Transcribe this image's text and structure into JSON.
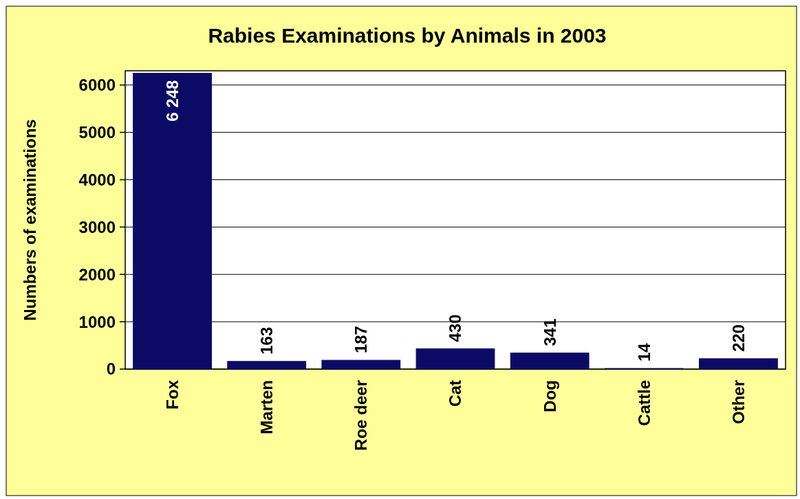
{
  "chart_data": {
    "type": "bar",
    "title": "Rabies Examinations by Animals in 2003",
    "ylabel": "Numbers of examinations",
    "categories": [
      "Fox",
      "Marten",
      "Roe deer",
      "Cat",
      "Dog",
      "Cattle",
      "Other"
    ],
    "values": [
      6248,
      163,
      187,
      430,
      341,
      14,
      220
    ],
    "value_labels": [
      "6 248",
      "163",
      "187",
      "430",
      "341",
      "14",
      "220"
    ],
    "color": "#0b0b66",
    "ylim": [
      0,
      6300
    ],
    "yticks": [
      0,
      1000,
      2000,
      3000,
      4000,
      5000,
      6000
    ],
    "grid": "y"
  }
}
